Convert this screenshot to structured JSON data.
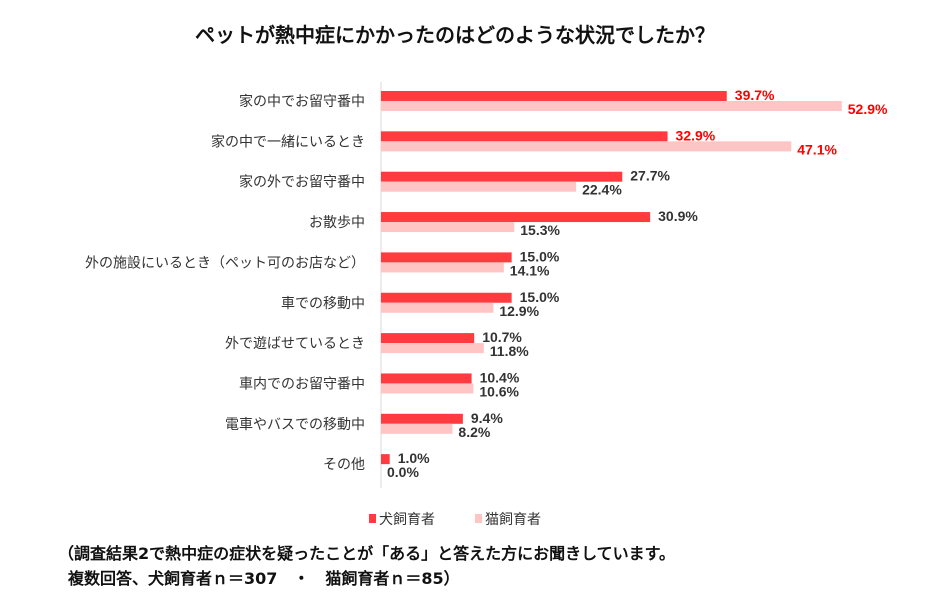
{
  "chart_data": {
    "type": "bar",
    "orientation": "horizontal",
    "title": "ペットが熱中症にかかったのはどのような状況でしたか？",
    "categories": [
      "家の中でお留守番中",
      "家の中で一緒にいるとき",
      "家の外でお留守番中",
      "お散歩中",
      "外の施設にいるとき（ペット可のお店など）",
      "車での移動中",
      "外で遊ばせているとき",
      "車内でのお留守番中",
      "電車やバスでの移動中",
      "その他"
    ],
    "series": [
      {
        "name": "犬飼育者",
        "color": "#ff3b3f",
        "values": [
          39.7,
          32.9,
          27.7,
          30.9,
          15.0,
          15.0,
          10.7,
          10.4,
          9.4,
          1.0
        ],
        "labels": [
          "39.7%",
          "32.9%",
          "27.7%",
          "30.9%",
          "15.0%",
          "15.0%",
          "10.7%",
          "10.4%",
          "9.4%",
          "1.0%"
        ]
      },
      {
        "name": "猫飼育者",
        "color": "#ffc4c4",
        "values": [
          52.9,
          47.1,
          22.4,
          15.3,
          14.1,
          12.9,
          11.8,
          10.6,
          8.2,
          0.0
        ],
        "labels": [
          "52.9%",
          "47.1%",
          "22.4%",
          "15.3%",
          "14.1%",
          "12.9%",
          "11.8%",
          "10.6%",
          "8.2%",
          "0.0%"
        ]
      }
    ],
    "highlight_rows": [
      0,
      1
    ],
    "highlight_color": "#ff0000",
    "xlim": [
      0,
      55
    ],
    "xlabel": "",
    "ylabel": "",
    "grid": false,
    "legend_position": "bottom"
  },
  "note": {
    "line1": "（調査結果2で熱中症の症状を疑ったことが「ある」と答えた方にお聞きしています。",
    "line2": "複数回答、犬飼育者ｎ＝307　・　猫飼育者ｎ＝85）"
  }
}
